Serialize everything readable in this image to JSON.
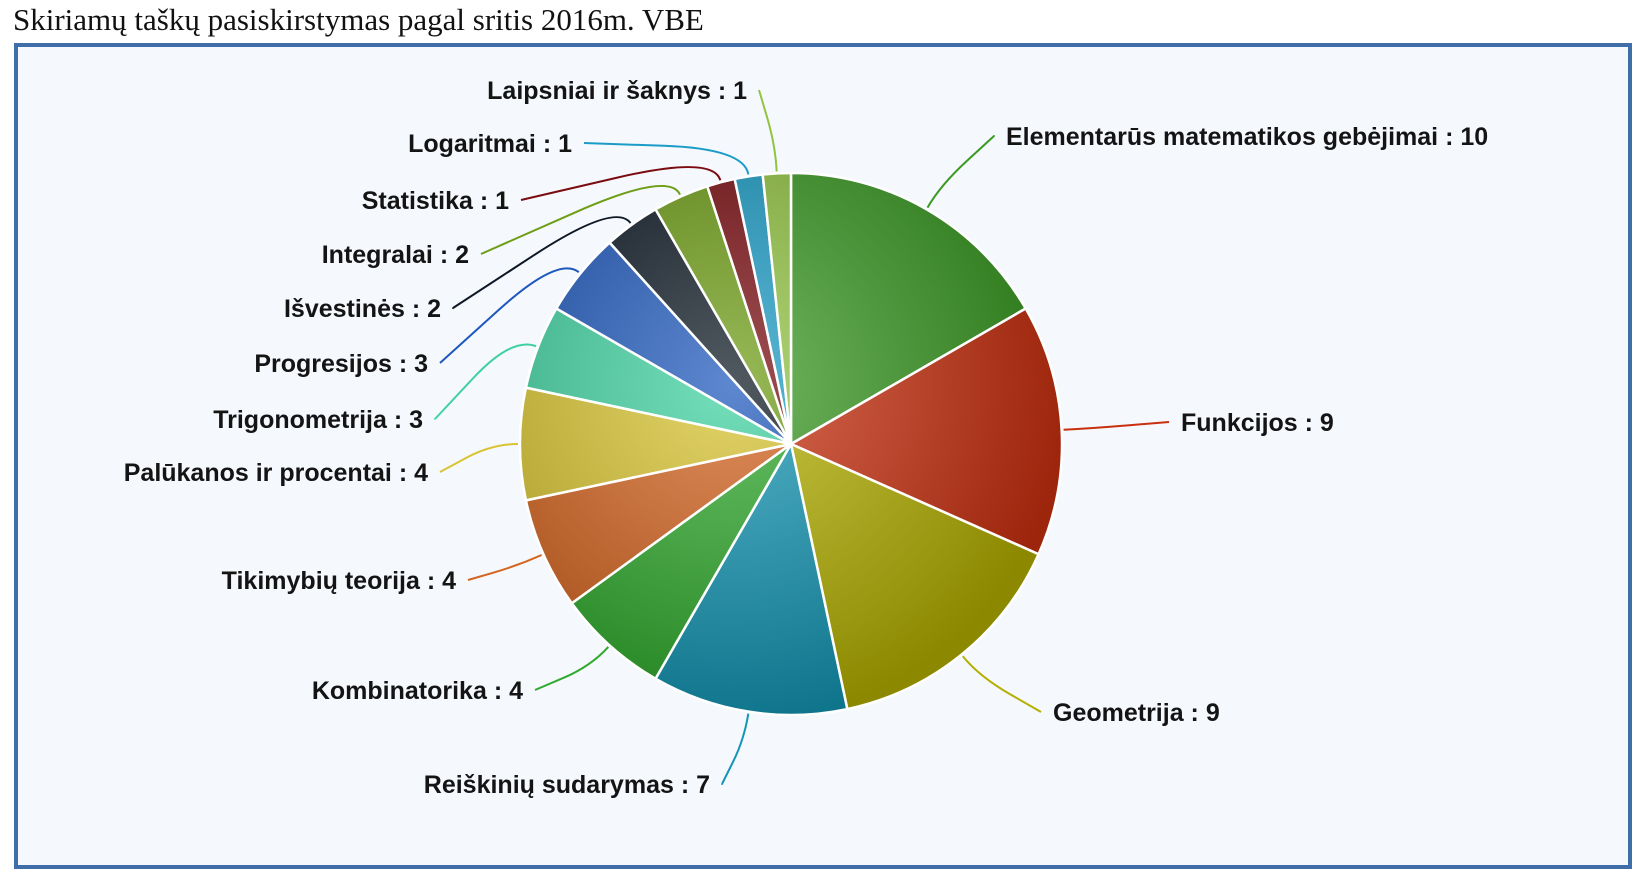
{
  "page": {
    "title": "Skiriamų taškų pasiskirstymas pagal sritis 2016m. VBE"
  },
  "chart_data": {
    "type": "pie",
    "title": "",
    "slices": [
      {
        "label": "Elementarūs matematikos gebėjimai : 10",
        "name": "Elementarūs matematikos gebėjimai",
        "value": 10,
        "color": "#3a9a22"
      },
      {
        "label": "Funkcijos : 9",
        "name": "Funkcijos",
        "value": 9,
        "color": "#c9300f"
      },
      {
        "label": "Geometrija : 9",
        "name": "Geometrija",
        "value": 9,
        "color": "#b3b000"
      },
      {
        "label": "Reiškinių sudarymas : 7",
        "name": "Reiškinių sudarymas",
        "value": 7,
        "color": "#1396b4"
      },
      {
        "label": "Kombinatorika : 4",
        "name": "Kombinatorika",
        "value": 4,
        "color": "#2faa2c"
      },
      {
        "label": "Tikimybių teorija : 4",
        "name": "Tikimybių teorija",
        "value": 4,
        "color": "#d5641f"
      },
      {
        "label": "Palūkanos ir procentai : 4",
        "name": "Palūkanos ir procentai",
        "value": 4,
        "color": "#d9c430"
      },
      {
        "label": "Trigonometrija : 3",
        "name": "Trigonometrija",
        "value": 3,
        "color": "#3fd2a0"
      },
      {
        "label": "Progresijos : 3",
        "name": "Progresijos",
        "value": 3,
        "color": "#1e58bd"
      },
      {
        "label": "Išvestinės : 2",
        "name": "Išvestinės",
        "value": 2,
        "color": "#0d1824"
      },
      {
        "label": "Integralai : 2",
        "name": "Integralai",
        "value": 2,
        "color": "#6e9e16"
      },
      {
        "label": "Statistika : 1",
        "name": "Statistika",
        "value": 1,
        "color": "#7a0c10"
      },
      {
        "label": "Logaritmai : 1",
        "name": "Logaritmai",
        "value": 1,
        "color": "#1b9cc6"
      },
      {
        "label": "Laipsniai ir šaknys : 1",
        "name": "Laipsniai ir šaknys",
        "value": 1,
        "color": "#92c442"
      }
    ],
    "start_angle_deg": 0,
    "direction": "clockwise",
    "legend": "none"
  }
}
